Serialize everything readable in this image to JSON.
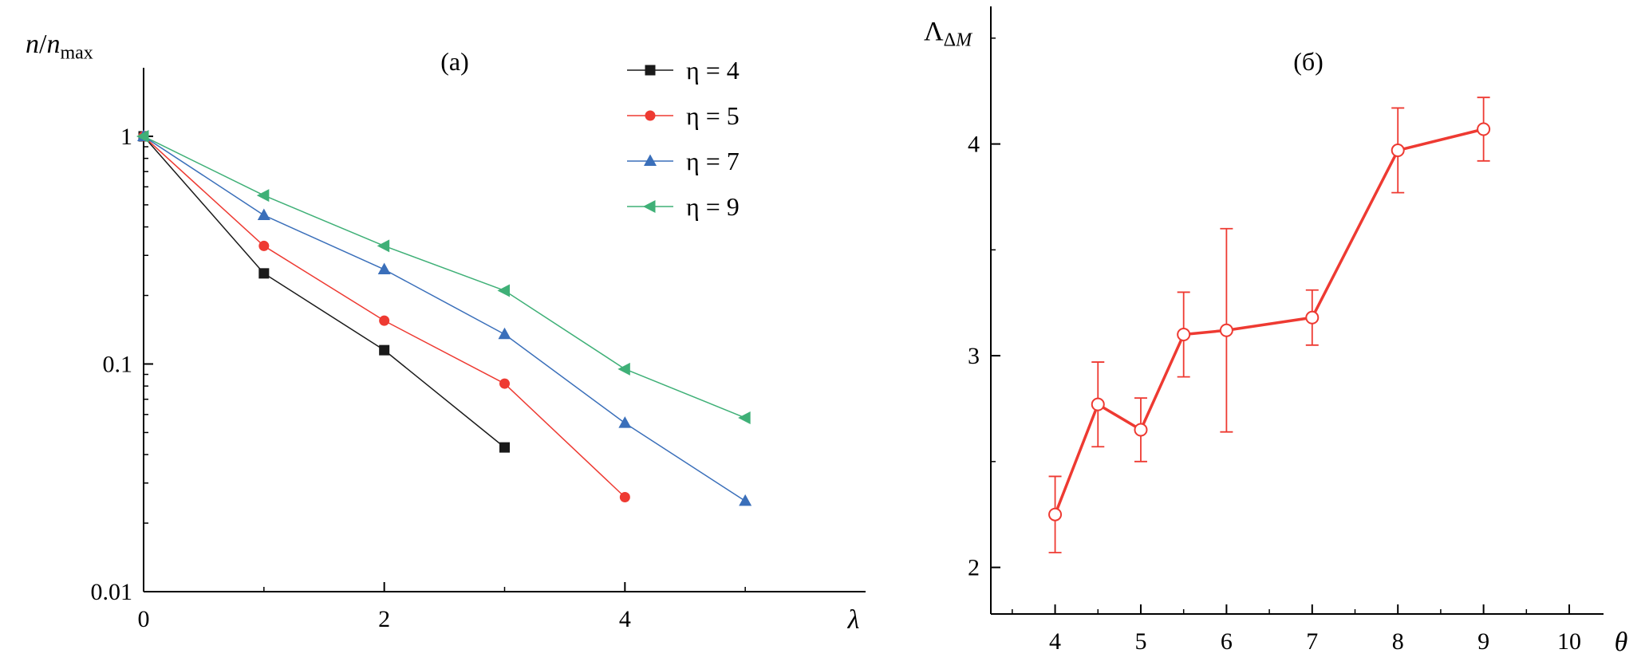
{
  "figure": {
    "background": "#ffffff",
    "axis_color": "#000000"
  },
  "chart_data": [
    {
      "id": "a",
      "type": "line",
      "title": "(а)",
      "xlabel": "λ",
      "ylabel_parts": [
        {
          "t": "n",
          "style": "italic"
        },
        {
          "t": "/",
          "style": "normal"
        },
        {
          "t": "n",
          "style": "italic"
        },
        {
          "t": "max",
          "style": "sub"
        }
      ],
      "yscale": "log",
      "xlim": [
        0,
        6.0
      ],
      "ylim": [
        0.01,
        2.0
      ],
      "xticks": [
        0,
        2,
        4
      ],
      "xticks_minor": [
        1,
        3,
        5
      ],
      "yticks": [
        1,
        0.1,
        0.01
      ],
      "grid": false,
      "legend_position": "top-right-inside",
      "series": [
        {
          "name": "η = 4",
          "color": "#1a1a1a",
          "marker": "square",
          "line_width": 1.5,
          "x": [
            0,
            1,
            2,
            3
          ],
          "y": [
            1,
            0.25,
            0.115,
            0.043
          ]
        },
        {
          "name": "η = 5",
          "color": "#ee3a32",
          "marker": "circle",
          "line_width": 1.5,
          "x": [
            0,
            1,
            2,
            3,
            4
          ],
          "y": [
            1,
            0.33,
            0.155,
            0.082,
            0.026
          ]
        },
        {
          "name": "η = 7",
          "color": "#3a6fba",
          "marker": "triangle-up",
          "line_width": 1.5,
          "x": [
            0,
            1,
            2,
            3,
            4,
            5
          ],
          "y": [
            1,
            0.45,
            0.26,
            0.135,
            0.055,
            0.025
          ]
        },
        {
          "name": "η = 9",
          "color": "#3fb077",
          "marker": "triangle-left",
          "line_width": 1.5,
          "x": [
            0,
            1,
            2,
            3,
            4,
            5
          ],
          "y": [
            1,
            0.55,
            0.33,
            0.21,
            0.095,
            0.058
          ]
        }
      ]
    },
    {
      "id": "b",
      "type": "line",
      "title": "(б)",
      "xlabel": "θ",
      "ylabel_parts": [
        {
          "t": "Λ",
          "style": "normal"
        },
        {
          "t": "Δ",
          "style": "sub"
        },
        {
          "t": "M",
          "style": "sub-italic"
        }
      ],
      "yscale": "linear",
      "xlim": [
        3.25,
        10.4
      ],
      "ylim": [
        1.78,
        4.65
      ],
      "xticks": [
        4,
        5,
        6,
        7,
        8,
        9,
        10
      ],
      "xticks_minor": [
        3.5,
        4.5,
        5.5,
        6.5,
        7.5,
        8.5,
        9.5
      ],
      "yticks": [
        2,
        3,
        4
      ],
      "yticks_minor": [
        2.5,
        3.5,
        4.5
      ],
      "grid": false,
      "legend_position": "none",
      "series": [
        {
          "name": "Λ_ΔM",
          "color": "#ee3a32",
          "marker": "open-circle",
          "line_width": 3.5,
          "x": [
            4,
            4.5,
            5,
            5.5,
            6,
            7,
            8,
            9
          ],
          "y": [
            2.25,
            2.77,
            2.65,
            3.1,
            3.12,
            3.18,
            3.97,
            4.07
          ],
          "yerr": [
            0.18,
            0.2,
            0.15,
            0.2,
            0.48,
            0.13,
            0.2,
            0.15
          ]
        }
      ]
    }
  ]
}
